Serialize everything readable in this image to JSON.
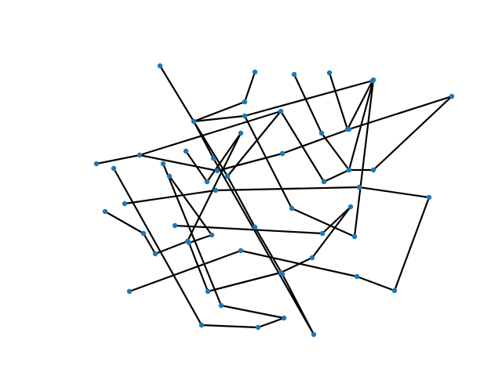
{
  "graph": {
    "node_color": "#1f77b4",
    "edge_color": "#000000",
    "nodes": [
      {
        "id": "n1"
      },
      {
        "id": "n2"
      },
      {
        "id": "n3"
      },
      {
        "id": "n4"
      },
      {
        "id": "n5"
      },
      {
        "id": "n6"
      },
      {
        "id": "n7"
      },
      {
        "id": "n8"
      },
      {
        "id": "n9"
      },
      {
        "id": "n10"
      },
      {
        "id": "n11"
      },
      {
        "id": "n12"
      },
      {
        "id": "n13"
      },
      {
        "id": "n14"
      },
      {
        "id": "n15"
      },
      {
        "id": "n16"
      },
      {
        "id": "n17"
      },
      {
        "id": "n18"
      },
      {
        "id": "n19"
      },
      {
        "id": "n20"
      },
      {
        "id": "n21"
      },
      {
        "id": "n22"
      },
      {
        "id": "n23"
      },
      {
        "id": "n24"
      },
      {
        "id": "n25"
      },
      {
        "id": "n26"
      },
      {
        "id": "n27"
      },
      {
        "id": "n28"
      },
      {
        "id": "n29"
      },
      {
        "id": "n30"
      },
      {
        "id": "n31"
      },
      {
        "id": "n32"
      },
      {
        "id": "n33"
      },
      {
        "id": "n34"
      },
      {
        "id": "n35"
      },
      {
        "id": "n36"
      },
      {
        "id": "n37"
      },
      {
        "id": "n38"
      },
      {
        "id": "n39"
      },
      {
        "id": "n40"
      },
      {
        "id": "n41"
      },
      {
        "id": "n42"
      },
      {
        "id": "n43"
      },
      {
        "id": "n44"
      },
      {
        "id": "n45"
      },
      {
        "id": "n46"
      },
      {
        "id": "n47"
      },
      {
        "id": "n48"
      },
      {
        "id": "n49"
      },
      {
        "id": "n50"
      },
      {
        "id": "n51"
      },
      {
        "id": "n52"
      },
      {
        "id": "n53"
      },
      {
        "id": "n54"
      },
      {
        "id": "n55"
      },
      {
        "id": "n56"
      },
      {
        "id": "n57"
      },
      {
        "id": "n58"
      },
      {
        "id": "n59"
      },
      {
        "id": "n60"
      }
    ],
    "edges": [
      [
        "n1",
        "n2"
      ],
      [
        "n2",
        "n3"
      ],
      [
        "n3",
        "n4"
      ],
      [
        "n4",
        "n5"
      ],
      [
        "n5",
        "n6"
      ],
      [
        "n7",
        "n8"
      ],
      [
        "n8",
        "n9"
      ],
      [
        "n9",
        "n10"
      ],
      [
        "n11",
        "n12"
      ],
      [
        "n12",
        "n13"
      ],
      [
        "n13",
        "n14"
      ],
      [
        "n14",
        "n15"
      ],
      [
        "n15",
        "n16"
      ],
      [
        "n12",
        "n17"
      ],
      [
        "n17",
        "n18"
      ],
      [
        "n18",
        "n19"
      ],
      [
        "n19",
        "n20"
      ],
      [
        "n21",
        "n22"
      ],
      [
        "n22",
        "n23"
      ],
      [
        "n23",
        "n24"
      ],
      [
        "n25",
        "n26"
      ],
      [
        "n26",
        "n27"
      ],
      [
        "n27",
        "n28"
      ],
      [
        "n28",
        "n29"
      ],
      [
        "n29",
        "n30"
      ],
      [
        "n31",
        "n32"
      ],
      [
        "n32",
        "n33"
      ],
      [
        "n34",
        "n35"
      ],
      [
        "n35",
        "n36"
      ],
      [
        "n37",
        "n38"
      ],
      [
        "n38",
        "n39"
      ],
      [
        "n39",
        "n40"
      ],
      [
        "n40",
        "n41"
      ],
      [
        "n42",
        "n43"
      ],
      [
        "n43",
        "n44"
      ],
      [
        "n44",
        "n45"
      ],
      [
        "n46",
        "n47"
      ],
      [
        "n47",
        "n48"
      ],
      [
        "n48",
        "n49"
      ],
      [
        "n50",
        "n51"
      ],
      [
        "n51",
        "n52"
      ],
      [
        "n53",
        "n54"
      ],
      [
        "n54",
        "n55"
      ],
      [
        "n55",
        "n56"
      ],
      [
        "n57",
        "n58"
      ],
      [
        "n58",
        "n59"
      ],
      [
        "n59",
        "n60"
      ],
      [
        "n60",
        "n41"
      ],
      [
        "n16",
        "n20"
      ],
      [
        "n24",
        "n30"
      ],
      [
        "n3",
        "n17"
      ],
      [
        "n9",
        "n28"
      ],
      [
        "n45",
        "n52"
      ],
      [
        "n33",
        "n36"
      ],
      [
        "n56",
        "n49"
      ],
      [
        "n6",
        "n10"
      ]
    ]
  }
}
